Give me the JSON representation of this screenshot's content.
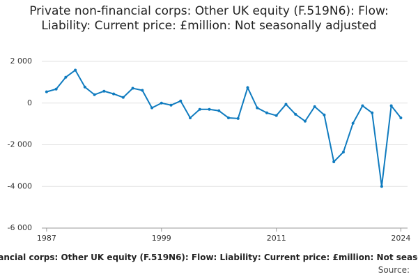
{
  "chart_data": {
    "type": "line",
    "title": "Private non-financial corps: Other UK equity (F.519N6): Flow: Liability: Current price: £million: Not seasonally adjusted",
    "source_label": "Source:",
    "x": [
      1987,
      1988,
      1989,
      1990,
      1991,
      1992,
      1993,
      1994,
      1995,
      1996,
      1997,
      1998,
      1999,
      2000,
      2001,
      2002,
      2003,
      2004,
      2005,
      2006,
      2007,
      2008,
      2009,
      2010,
      2011,
      2012,
      2013,
      2014,
      2015,
      2016,
      2017,
      2018,
      2019,
      2020,
      2021,
      2022,
      2023,
      2024
    ],
    "series": [
      {
        "name": "F.519N6",
        "color": "#0f7bbf",
        "values": [
          540,
          670,
          1240,
          1580,
          770,
          400,
          570,
          440,
          270,
          710,
          610,
          -230,
          0,
          -100,
          100,
          -710,
          -300,
          -300,
          -370,
          -710,
          -740,
          740,
          -230,
          -470,
          -600,
          -60,
          -540,
          -870,
          -170,
          -570,
          -2820,
          -2350,
          -970,
          -130,
          -470,
          -4000,
          -130,
          -710
        ]
      }
    ],
    "xlim": [
      1986.5,
      2024.7
    ],
    "xticks": [
      1987,
      1999,
      2011,
      2024
    ],
    "ylim": [
      -6000,
      2000
    ],
    "yticks": [
      {
        "value": -6000,
        "label": "-6 000"
      },
      {
        "value": -4000,
        "label": "-4 000"
      },
      {
        "value": -2000,
        "label": "-2 000"
      },
      0,
      {
        "value": 2000,
        "label": "2 000"
      }
    ],
    "grid": true
  }
}
